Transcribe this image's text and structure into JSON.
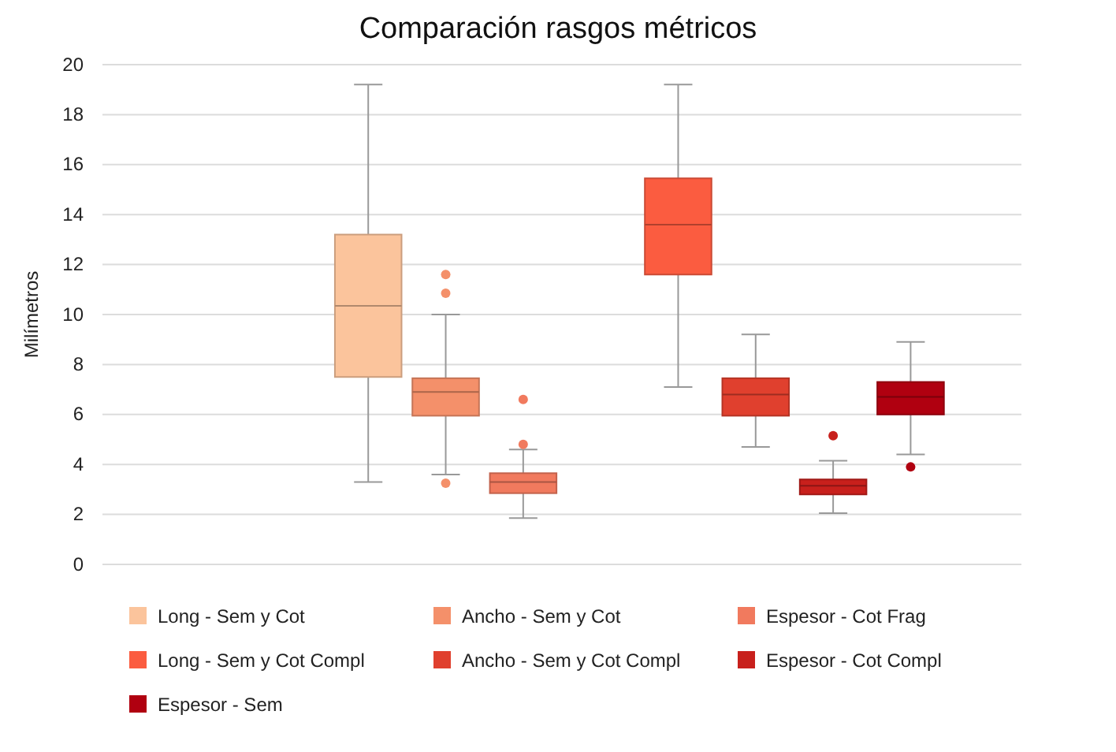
{
  "chart_data": {
    "type": "box",
    "title": "Comparación rasgos métricos",
    "ylabel": "Milímetros",
    "categories": [
      null,
      null,
      null,
      null,
      null,
      null,
      null,
      null,
      null,
      null,
      null,
      null
    ],
    "ylim": [
      0,
      20
    ],
    "yticks": [
      0,
      2,
      4,
      6,
      8,
      10,
      12,
      14,
      16,
      18,
      20
    ],
    "grid": "y",
    "legend": "bottom",
    "tick_labels": "y",
    "series": [
      {
        "name": "Long - Sem y Cot",
        "color": "#fbc49c",
        "boxes": [
          null,
          null,
          null,
          {
            "low": 3.3,
            "q1": 7.5,
            "median": 10.35,
            "q3": 13.2,
            "high": 19.2
          },
          null,
          null,
          null,
          null,
          null,
          null,
          null,
          null
        ]
      },
      {
        "name": "Ancho - Sem y Cot",
        "color": "#f4906a",
        "boxes": [
          null,
          null,
          null,
          null,
          {
            "low": 3.6,
            "q1": 5.95,
            "median": 6.9,
            "q3": 7.45,
            "high": 10.0,
            "outliers": [
              11.6,
              10.85,
              3.25
            ]
          },
          null,
          null,
          null,
          null,
          null,
          null,
          null
        ]
      },
      {
        "name": "Espesor - Cot Frag",
        "color": "#f17a5e",
        "boxes": [
          null,
          null,
          null,
          null,
          null,
          {
            "low": 1.85,
            "q1": 2.85,
            "median": 3.3,
            "q3": 3.65,
            "high": 4.6,
            "outliers": [
              6.6,
              4.8
            ]
          },
          null,
          null,
          null,
          null,
          null,
          null
        ]
      },
      {
        "name": "Long - Sem y Cot Compl",
        "color": "#fb5c40",
        "boxes": [
          null,
          null,
          null,
          null,
          null,
          null,
          null,
          {
            "low": 7.1,
            "q1": 11.6,
            "median": 13.6,
            "q3": 15.45,
            "high": 19.2
          },
          null,
          null,
          null,
          null
        ]
      },
      {
        "name": "Ancho - Sem y Cot Compl",
        "color": "#e0402e",
        "boxes": [
          null,
          null,
          null,
          null,
          null,
          null,
          null,
          null,
          {
            "low": 4.7,
            "q1": 5.95,
            "median": 6.8,
            "q3": 7.45,
            "high": 9.2
          },
          null,
          null,
          null
        ]
      },
      {
        "name": "Espesor - Cot Compl",
        "color": "#c8201c",
        "boxes": [
          null,
          null,
          null,
          null,
          null,
          null,
          null,
          null,
          null,
          {
            "low": 2.05,
            "q1": 2.8,
            "median": 3.15,
            "q3": 3.4,
            "high": 4.15,
            "outliers": [
              5.15
            ]
          },
          null,
          null
        ]
      },
      {
        "name": "Espesor - Sem",
        "color": "#b00010",
        "boxes": [
          null,
          null,
          null,
          null,
          null,
          null,
          null,
          null,
          null,
          null,
          {
            "low": 4.4,
            "q1": 6.0,
            "median": 6.7,
            "q3": 7.3,
            "high": 8.9,
            "outliers": [
              3.9
            ]
          },
          null
        ]
      }
    ]
  }
}
